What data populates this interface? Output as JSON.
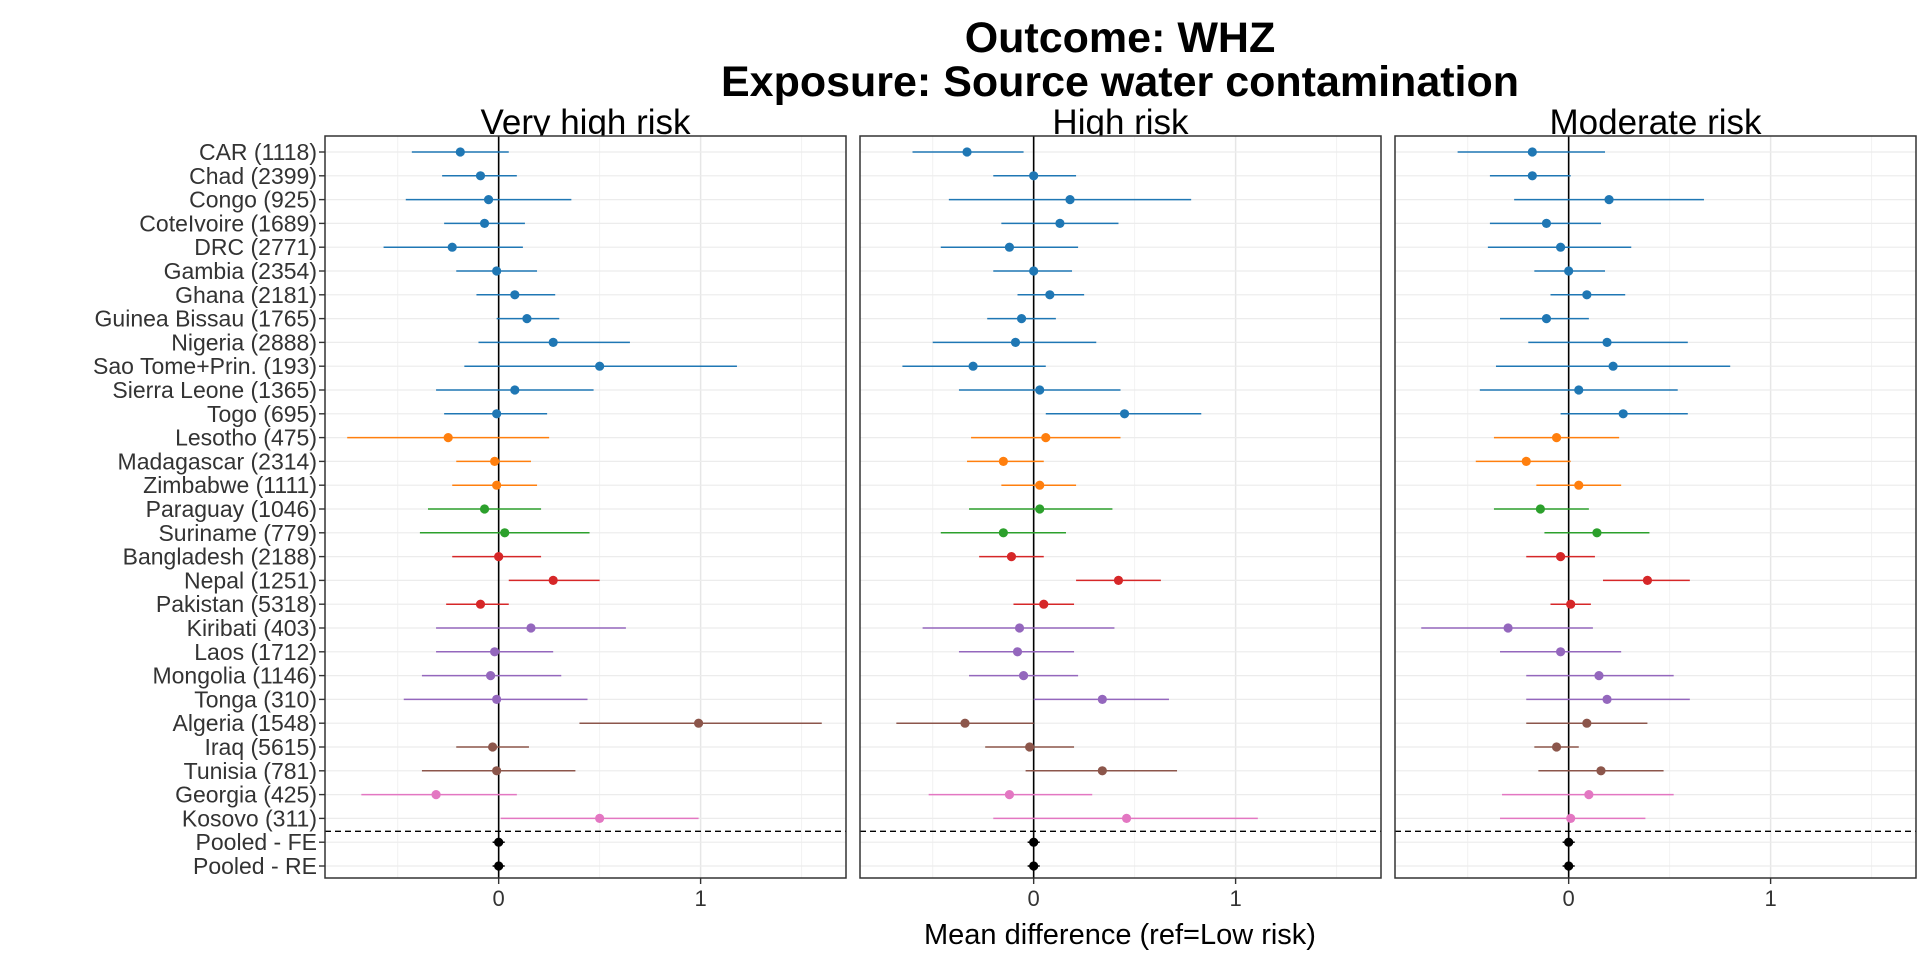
{
  "chart_data": {
    "type": "forest",
    "title_line1": "Outcome: WHZ",
    "title_line2": "Exposure: Source water contamination",
    "xlabel": "Mean difference (ref=Low risk)",
    "xlim": [
      -0.86,
      1.72
    ],
    "x_ticks": [
      0,
      1
    ],
    "x_tick_labels": [
      "0",
      "1"
    ],
    "grid": true,
    "reference_line_x": 0,
    "colors": {
      "blue": "#1f77b4",
      "orange": "#ff7f0e",
      "green": "#2ca02c",
      "red": "#d62728",
      "purple": "#9467bd",
      "brown": "#8c564b",
      "pink": "#e377c2",
      "black": "#000000"
    },
    "rows": [
      {
        "label": "CAR (1118)",
        "color": "blue"
      },
      {
        "label": "Chad (2399)",
        "color": "blue"
      },
      {
        "label": "Congo (925)",
        "color": "blue"
      },
      {
        "label": "CoteIvoire (1689)",
        "color": "blue"
      },
      {
        "label": "DRC (2771)",
        "color": "blue"
      },
      {
        "label": "Gambia (2354)",
        "color": "blue"
      },
      {
        "label": "Ghana (2181)",
        "color": "blue"
      },
      {
        "label": "Guinea Bissau (1765)",
        "color": "blue"
      },
      {
        "label": "Nigeria (2888)",
        "color": "blue"
      },
      {
        "label": "Sao Tome+Prin. (193)",
        "color": "blue"
      },
      {
        "label": "Sierra Leone (1365)",
        "color": "blue"
      },
      {
        "label": "Togo (695)",
        "color": "blue"
      },
      {
        "label": "Lesotho (475)",
        "color": "orange"
      },
      {
        "label": "Madagascar (2314)",
        "color": "orange"
      },
      {
        "label": "Zimbabwe (1111)",
        "color": "orange"
      },
      {
        "label": "Paraguay (1046)",
        "color": "green"
      },
      {
        "label": "Suriname (779)",
        "color": "green"
      },
      {
        "label": "Bangladesh (2188)",
        "color": "red"
      },
      {
        "label": "Nepal (1251)",
        "color": "red"
      },
      {
        "label": "Pakistan (5318)",
        "color": "red"
      },
      {
        "label": "Kiribati (403)",
        "color": "purple"
      },
      {
        "label": "Laos (1712)",
        "color": "purple"
      },
      {
        "label": "Mongolia (1146)",
        "color": "purple"
      },
      {
        "label": "Tonga (310)",
        "color": "purple"
      },
      {
        "label": "Algeria (1548)",
        "color": "brown"
      },
      {
        "label": "Iraq (5615)",
        "color": "brown"
      },
      {
        "label": "Tunisia (781)",
        "color": "brown"
      },
      {
        "label": "Georgia (425)",
        "color": "pink"
      },
      {
        "label": "Kosovo (311)",
        "color": "pink"
      },
      {
        "label": "Pooled - FE",
        "color": "black"
      },
      {
        "label": "Pooled - RE",
        "color": "black"
      }
    ],
    "panels": [
      {
        "name": "Very high risk",
        "est": [
          -0.19,
          -0.09,
          -0.05,
          -0.07,
          -0.23,
          -0.01,
          0.08,
          0.14,
          0.27,
          0.5,
          0.08,
          -0.01,
          -0.25,
          -0.02,
          -0.01,
          -0.07,
          0.03,
          0.0,
          0.27,
          -0.09,
          0.16,
          -0.02,
          -0.04,
          -0.01,
          0.99,
          -0.03,
          -0.01,
          -0.31,
          0.5,
          0.0,
          0.0
        ],
        "lower": [
          -0.43,
          -0.28,
          -0.46,
          -0.27,
          -0.57,
          -0.21,
          -0.11,
          -0.01,
          -0.1,
          -0.17,
          -0.31,
          -0.27,
          -0.75,
          -0.21,
          -0.23,
          -0.35,
          -0.39,
          -0.23,
          0.05,
          -0.26,
          -0.31,
          -0.31,
          -0.38,
          -0.47,
          0.4,
          -0.21,
          -0.38,
          -0.68,
          0.01,
          -0.03,
          -0.03
        ],
        "upper": [
          0.05,
          0.09,
          0.36,
          0.13,
          0.12,
          0.19,
          0.28,
          0.3,
          0.65,
          1.18,
          0.47,
          0.24,
          0.25,
          0.16,
          0.19,
          0.21,
          0.45,
          0.21,
          0.5,
          0.05,
          0.63,
          0.27,
          0.31,
          0.44,
          1.6,
          0.15,
          0.38,
          0.09,
          0.99,
          0.03,
          0.03
        ]
      },
      {
        "name": "High risk",
        "est": [
          -0.33,
          0.0,
          0.18,
          0.13,
          -0.12,
          0.0,
          0.08,
          -0.06,
          -0.09,
          -0.3,
          0.03,
          0.45,
          0.06,
          -0.15,
          0.03,
          0.03,
          -0.15,
          -0.11,
          0.42,
          0.05,
          -0.07,
          -0.08,
          -0.05,
          0.34,
          -0.34,
          -0.02,
          0.34,
          -0.12,
          0.46,
          0.0,
          0.0
        ],
        "lower": [
          -0.6,
          -0.2,
          -0.42,
          -0.16,
          -0.46,
          -0.2,
          -0.08,
          -0.23,
          -0.5,
          -0.65,
          -0.37,
          0.06,
          -0.31,
          -0.33,
          -0.16,
          -0.32,
          -0.46,
          -0.27,
          0.21,
          -0.1,
          -0.55,
          -0.37,
          -0.32,
          0.0,
          -0.68,
          -0.24,
          -0.04,
          -0.52,
          -0.2,
          -0.03,
          -0.03
        ],
        "upper": [
          -0.05,
          0.21,
          0.78,
          0.42,
          0.22,
          0.19,
          0.25,
          0.11,
          0.31,
          0.06,
          0.43,
          0.83,
          0.43,
          0.05,
          0.21,
          0.39,
          0.16,
          0.05,
          0.63,
          0.2,
          0.4,
          0.2,
          0.22,
          0.67,
          0.0,
          0.2,
          0.71,
          0.29,
          1.11,
          0.03,
          0.03
        ]
      },
      {
        "name": "Moderate risk",
        "est": [
          -0.18,
          -0.18,
          0.2,
          -0.11,
          -0.04,
          0.0,
          0.09,
          -0.11,
          0.19,
          0.22,
          0.05,
          0.27,
          -0.06,
          -0.21,
          0.05,
          -0.14,
          0.14,
          -0.04,
          0.39,
          0.01,
          -0.3,
          -0.04,
          0.15,
          0.19,
          0.09,
          -0.06,
          0.16,
          0.1,
          0.01,
          0.0,
          0.0
        ],
        "lower": [
          -0.55,
          -0.39,
          -0.27,
          -0.39,
          -0.4,
          -0.17,
          -0.09,
          -0.34,
          -0.2,
          -0.36,
          -0.44,
          -0.04,
          -0.37,
          -0.46,
          -0.16,
          -0.37,
          -0.12,
          -0.21,
          0.17,
          -0.09,
          -0.73,
          -0.34,
          -0.21,
          -0.21,
          -0.21,
          -0.17,
          -0.15,
          -0.33,
          -0.34,
          -0.03,
          -0.03
        ],
        "upper": [
          0.18,
          0.01,
          0.67,
          0.16,
          0.31,
          0.18,
          0.28,
          0.1,
          0.59,
          0.8,
          0.54,
          0.59,
          0.25,
          0.01,
          0.26,
          0.1,
          0.4,
          0.13,
          0.6,
          0.11,
          0.12,
          0.26,
          0.52,
          0.6,
          0.39,
          0.05,
          0.47,
          0.52,
          0.38,
          0.03,
          0.03
        ]
      }
    ]
  }
}
